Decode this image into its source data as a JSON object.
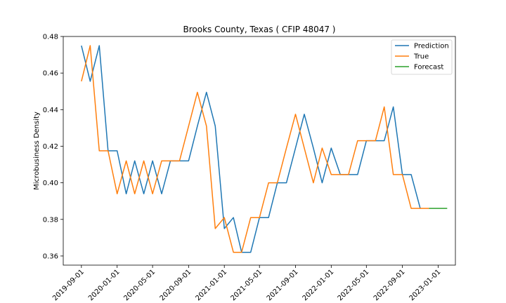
{
  "chart_data": {
    "type": "line",
    "title": "Brooks County, Texas ( CFIP 48047 )",
    "xlabel": "",
    "ylabel": "Microbusiness Density",
    "ylim": [
      0.355,
      0.48
    ],
    "xlim": [
      "2019-07-01",
      "2023-03-01"
    ],
    "yticks": [
      0.36,
      0.38,
      0.4,
      0.42,
      0.44,
      0.46,
      0.48
    ],
    "ytick_labels": [
      "0.36",
      "0.38",
      "0.40",
      "0.42",
      "0.44",
      "0.46",
      "0.48"
    ],
    "xticks": [
      "2019-09-01",
      "2020-01-01",
      "2020-05-01",
      "2020-09-01",
      "2021-01-01",
      "2021-05-01",
      "2021-09-01",
      "2022-01-01",
      "2022-05-01",
      "2022-09-01",
      "2023-01-01"
    ],
    "legend_position": "top-right",
    "grid": false,
    "colors": {
      "Prediction": "#1f77b4",
      "True": "#ff7f0e",
      "Forecast": "#2ca02c"
    },
    "series": [
      {
        "name": "Prediction",
        "x": [
          "2019-09-01",
          "2019-10-01",
          "2019-11-01",
          "2019-12-01",
          "2020-01-01",
          "2020-02-01",
          "2020-03-01",
          "2020-04-01",
          "2020-05-01",
          "2020-06-01",
          "2020-07-01",
          "2020-08-01",
          "2020-09-01",
          "2020-10-01",
          "2020-11-01",
          "2020-12-01",
          "2021-01-01",
          "2021-02-01",
          "2021-03-01",
          "2021-04-01",
          "2021-05-01",
          "2021-06-01",
          "2021-07-01",
          "2021-08-01",
          "2021-09-01",
          "2021-10-01",
          "2021-11-01",
          "2021-12-01",
          "2022-01-01",
          "2022-02-01",
          "2022-03-01",
          "2022-04-01",
          "2022-05-01",
          "2022-06-01",
          "2022-07-01",
          "2022-08-01",
          "2022-09-01",
          "2022-10-01",
          "2022-11-01"
        ],
        "values": [
          0.475,
          0.4555,
          0.475,
          0.4175,
          0.4175,
          0.394,
          0.412,
          0.394,
          0.412,
          0.394,
          0.412,
          0.412,
          0.412,
          0.431,
          0.4495,
          0.431,
          0.375,
          0.381,
          0.362,
          0.362,
          0.381,
          0.381,
          0.4,
          0.4,
          0.419,
          0.4375,
          0.419,
          0.4,
          0.419,
          0.4045,
          0.4045,
          0.4045,
          0.423,
          0.423,
          0.423,
          0.4415,
          0.4045,
          0.4045,
          0.386
        ]
      },
      {
        "name": "True",
        "x": [
          "2019-09-01",
          "2019-10-01",
          "2019-11-01",
          "2019-12-01",
          "2020-01-01",
          "2020-02-01",
          "2020-03-01",
          "2020-04-01",
          "2020-05-01",
          "2020-06-01",
          "2020-07-01",
          "2020-08-01",
          "2020-09-01",
          "2020-10-01",
          "2020-11-01",
          "2020-12-01",
          "2021-01-01",
          "2021-02-01",
          "2021-03-01",
          "2021-04-01",
          "2021-05-01",
          "2021-06-01",
          "2021-07-01",
          "2021-08-01",
          "2021-09-01",
          "2021-10-01",
          "2021-11-01",
          "2021-12-01",
          "2022-01-01",
          "2022-02-01",
          "2022-03-01",
          "2022-04-01",
          "2022-05-01",
          "2022-06-01",
          "2022-07-01",
          "2022-08-01",
          "2022-09-01",
          "2022-10-01",
          "2022-11-01",
          "2022-12-01"
        ],
        "values": [
          0.4555,
          0.475,
          0.4175,
          0.4175,
          0.394,
          0.412,
          0.394,
          0.412,
          0.394,
          0.412,
          0.412,
          0.412,
          0.431,
          0.4495,
          0.431,
          0.375,
          0.381,
          0.362,
          0.362,
          0.381,
          0.381,
          0.4,
          0.4,
          0.419,
          0.4375,
          0.419,
          0.4,
          0.419,
          0.4045,
          0.4045,
          0.4045,
          0.423,
          0.423,
          0.423,
          0.4415,
          0.4045,
          0.4045,
          0.386,
          0.386,
          0.386
        ]
      },
      {
        "name": "Forecast",
        "x": [
          "2022-12-01",
          "2023-01-01",
          "2023-02-01"
        ],
        "values": [
          0.386,
          0.386,
          0.386
        ]
      }
    ]
  }
}
